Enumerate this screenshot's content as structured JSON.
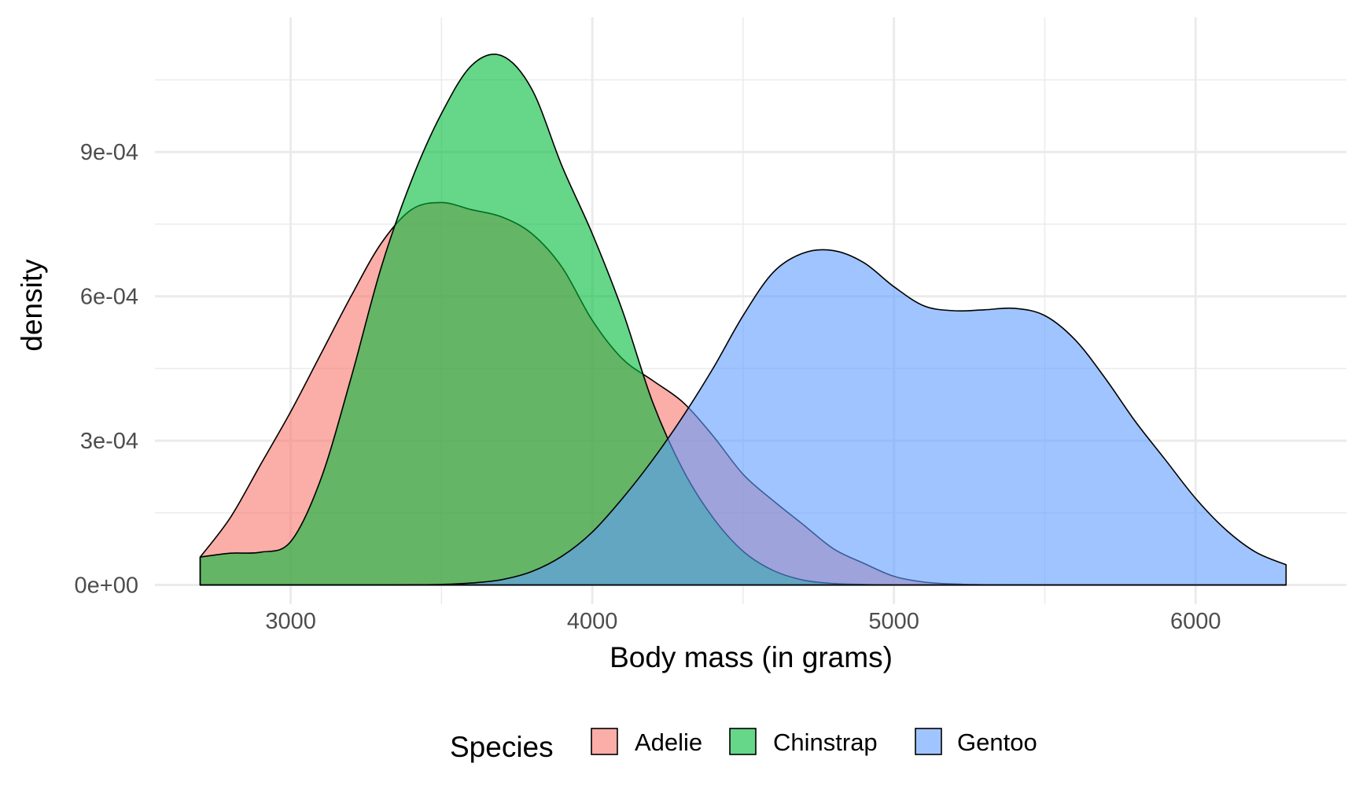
{
  "chart_data": {
    "type": "area",
    "subtype": "density",
    "xlabel": "Body mass (in grams)",
    "ylabel": "density",
    "xlim": [
      2550,
      6500
    ],
    "ylim": [
      -4e-05,
      0.00118
    ],
    "x_ticks": [
      3000,
      4000,
      5000,
      6000
    ],
    "x_tick_labels": [
      "3000",
      "4000",
      "5000",
      "6000"
    ],
    "y_ticks": [
      0,
      0.0003,
      0.0006,
      0.0009
    ],
    "y_tick_labels": [
      "0e+00",
      "3e-04",
      "6e-04",
      "9e-04"
    ],
    "grid": true,
    "legend": {
      "title": "Species",
      "position": "bottom"
    },
    "series": [
      {
        "name": "Adelie",
        "color": "#F8766D",
        "x": [
          2700,
          2800,
          2900,
          3000,
          3100,
          3200,
          3300,
          3400,
          3500,
          3600,
          3700,
          3800,
          3900,
          4000,
          4100,
          4200,
          4300,
          4400,
          4500,
          4600,
          4700,
          4800,
          4900,
          5000,
          5100,
          5200,
          5300,
          5500,
          5700,
          6000,
          6300
        ],
        "y": [
          5.8e-05,
          0.00014,
          0.00025,
          0.00036,
          0.00048,
          0.0006,
          0.00071,
          0.00078,
          0.000795,
          0.00078,
          0.000765,
          0.00073,
          0.00066,
          0.00055,
          0.00047,
          0.000425,
          0.00038,
          0.00031,
          0.00023,
          0.000175,
          0.000125,
          7.5e-05,
          4.5e-05,
          1.8e-05,
          6e-06,
          2e-06,
          5e-07,
          0,
          0,
          0,
          0
        ]
      },
      {
        "name": "Chinstrap",
        "color": "#00BA38",
        "x": [
          2700,
          2800,
          2900,
          3000,
          3100,
          3200,
          3300,
          3400,
          3500,
          3600,
          3700,
          3800,
          3900,
          4000,
          4100,
          4200,
          4300,
          4400,
          4500,
          4600,
          4700,
          4800,
          4900,
          5000,
          5200,
          5500,
          6000,
          6300
        ],
        "y": [
          5.8e-05,
          6.6e-05,
          6.8e-05,
          9e-05,
          0.00022,
          0.00043,
          0.00066,
          0.00084,
          0.00098,
          0.00108,
          0.0011,
          0.00103,
          0.00087,
          0.00073,
          0.00057,
          0.00038,
          0.00024,
          0.00014,
          7e-05,
          3e-05,
          1e-05,
          3e-06,
          1e-06,
          0,
          0,
          0,
          0,
          0
        ]
      },
      {
        "name": "Gentoo",
        "color": "#619CFF",
        "x": [
          2700,
          3000,
          3300,
          3400,
          3500,
          3600,
          3700,
          3800,
          3900,
          4000,
          4100,
          4200,
          4300,
          4400,
          4500,
          4600,
          4700,
          4800,
          4900,
          5000,
          5100,
          5200,
          5300,
          5400,
          5500,
          5600,
          5700,
          5800,
          5900,
          6000,
          6100,
          6200,
          6300
        ],
        "y": [
          0,
          0,
          0,
          3e-07,
          1e-06,
          4e-06,
          1.1e-05,
          2.8e-05,
          6e-05,
          0.00011,
          0.00018,
          0.00026,
          0.00035,
          0.00045,
          0.00056,
          0.00065,
          0.00069,
          0.000695,
          0.00067,
          0.00062,
          0.00058,
          0.00057,
          0.000572,
          0.000575,
          0.00056,
          0.00051,
          0.00043,
          0.00034,
          0.00026,
          0.00018,
          0.000115,
          6.8e-05,
          4.2e-05
        ]
      }
    ]
  }
}
